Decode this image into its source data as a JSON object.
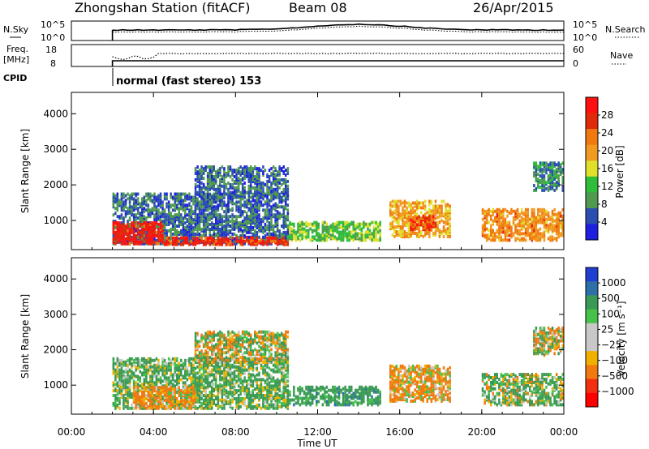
{
  "header": {
    "station": "Zhongshan Station (fitACF)",
    "beam": "Beam 08",
    "date": "26/Apr/2015"
  },
  "top_panels": {
    "nsky_label": "N.Sky",
    "nsky_ticks": [
      "10^5",
      "10^0"
    ],
    "nsearch_label": "N.Search",
    "nsearch_ticks": [
      "10^5",
      "10^0"
    ],
    "freq_label_line1": "Freq.",
    "freq_label_line2": "[MHz]",
    "freq_ticks": [
      "18",
      "8"
    ],
    "nave_label": "Nave",
    "nave_ticks": [
      "60",
      "0"
    ],
    "cpid_label": "CPID",
    "cpid_value": "normal (fast stereo) 153",
    "operation_start_hour": 2.0
  },
  "colors": {
    "power_scale": [
      "#1f1fe0",
      "#2a4fb0",
      "#4f9a4f",
      "#2fbe3a",
      "#e0e02a",
      "#f09a20",
      "#f07a10",
      "#e02a0a",
      "#ff1010"
    ],
    "velocity_scale": [
      "#1f3fd0",
      "#2e6fa8",
      "#3a9a55",
      "#46c24a",
      "#c8c8c8",
      "#c8c8c8",
      "#f0b000",
      "#f07a10",
      "#f03010",
      "#ff0000"
    ]
  },
  "chart_data": [
    {
      "type": "heatmap",
      "panel": "power",
      "ylabel": "Slant Range [km]",
      "yticks": [
        "1000",
        "2000",
        "3000",
        "4000"
      ],
      "ylim": [
        180,
        4600
      ],
      "xlim": [
        0,
        24
      ],
      "colorbar_label": "Power [dB]",
      "colorbar_ticks": [
        "4",
        "8",
        "12",
        "16",
        "20",
        "24",
        "28"
      ],
      "colorbar_range": [
        0,
        30
      ],
      "echo_regions": [
        {
          "t0": 2.0,
          "t1": 10.5,
          "r0": 300,
          "r1": 1700,
          "level": 6
        },
        {
          "t0": 2.0,
          "t1": 4.5,
          "r0": 300,
          "r1": 900,
          "level": 27
        },
        {
          "t0": 4.5,
          "t1": 10.5,
          "r0": 280,
          "r1": 500,
          "level": 26
        },
        {
          "t0": 6.0,
          "t1": 10.5,
          "r0": 1600,
          "r1": 2500,
          "level": 6
        },
        {
          "t0": 10.5,
          "t1": 15.0,
          "r0": 400,
          "r1": 900,
          "level": 12
        },
        {
          "t0": 15.5,
          "t1": 18.5,
          "r0": 500,
          "r1": 1500,
          "level": 18
        },
        {
          "t0": 16.5,
          "t1": 17.8,
          "r0": 700,
          "r1": 1100,
          "level": 24
        },
        {
          "t0": 20.0,
          "t1": 24.0,
          "r0": 400,
          "r1": 1300,
          "level": 20
        },
        {
          "t0": 22.5,
          "t1": 24.0,
          "r0": 1800,
          "r1": 2600,
          "level": 8
        }
      ]
    },
    {
      "type": "heatmap",
      "panel": "velocity",
      "ylabel": "Slant Range [km]",
      "yticks": [
        "1000",
        "2000",
        "3000",
        "4000"
      ],
      "ylim": [
        180,
        4600
      ],
      "xlim": [
        0,
        24
      ],
      "xlabel": "Time UT",
      "xticks": [
        "00:00",
        "04:00",
        "08:00",
        "12:00",
        "16:00",
        "20:00",
        "00:00"
      ],
      "colorbar_label": "Velocity [m s⁻¹]",
      "colorbar_ticks": [
        "1000",
        "500",
        "100",
        "25",
        "−25",
        "−100",
        "−500",
        "−1000"
      ],
      "echo_regions": [
        {
          "t0": 2.0,
          "t1": 10.5,
          "r0": 300,
          "r1": 1700,
          "level": 150
        },
        {
          "t0": 3.0,
          "t1": 6.0,
          "r0": 300,
          "r1": 900,
          "level": -200
        },
        {
          "t0": 6.0,
          "t1": 10.5,
          "r0": 1600,
          "r1": 2500,
          "level": 0
        },
        {
          "t0": 10.5,
          "t1": 15.0,
          "r0": 400,
          "r1": 900,
          "level": 300
        },
        {
          "t0": 15.5,
          "t1": 18.5,
          "r0": 500,
          "r1": 1500,
          "level": -150
        },
        {
          "t0": 20.0,
          "t1": 24.0,
          "r0": 400,
          "r1": 1300,
          "level": 100
        },
        {
          "t0": 22.5,
          "t1": 24.0,
          "r0": 1800,
          "r1": 2600,
          "level": 0
        }
      ]
    }
  ]
}
